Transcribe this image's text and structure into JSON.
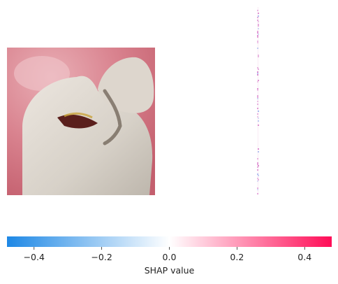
{
  "chart_data": {
    "type": "heatmap",
    "title": "",
    "panels": [
      {
        "name": "input-image",
        "content": "photograph of a molar tooth with a dark carious lesion in the central fissure, pink gingiva background"
      },
      {
        "name": "shap-map",
        "content": "SHAP attribution map for the image, near-zero everywhere with faint pink and blue pixels in a narrow vertical column"
      }
    ],
    "colorbar": {
      "xlabel": "SHAP value",
      "xlim": [
        -0.48,
        0.48
      ],
      "ticks": [
        -0.4,
        -0.2,
        0.0,
        0.2,
        0.4
      ],
      "tick_labels": [
        "−0.4",
        "−0.2",
        "0.0",
        "0.2",
        "0.4"
      ],
      "cmap_stops": [
        {
          "value": -0.48,
          "color": "#1e88e5"
        },
        {
          "value": 0.0,
          "color": "#ffffff"
        },
        {
          "value": 0.48,
          "color": "#ff0d57"
        }
      ]
    }
  }
}
